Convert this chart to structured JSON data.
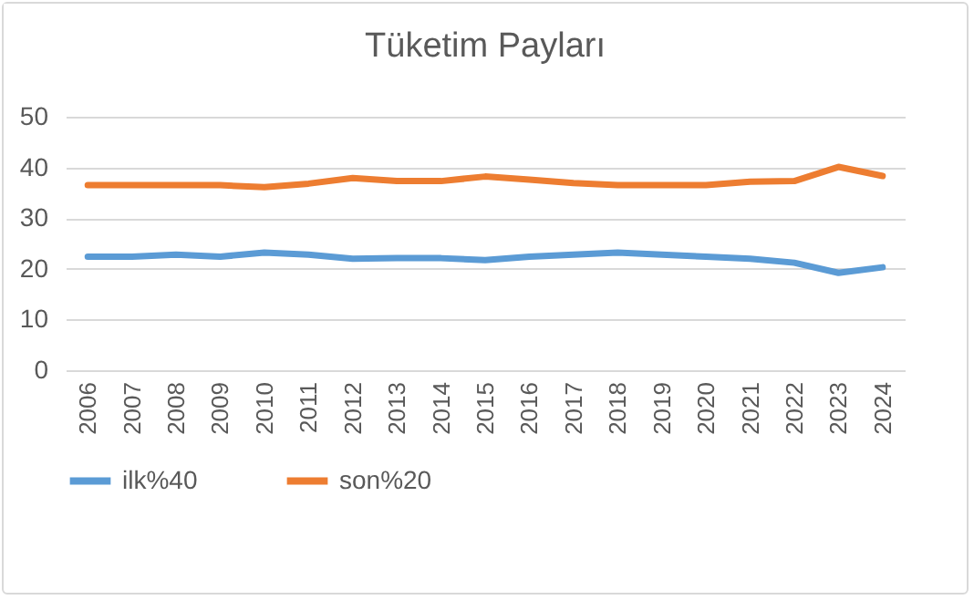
{
  "chart_data": {
    "type": "line",
    "title": "Tüketim Payları",
    "categories": [
      "2006",
      "2007",
      "2008",
      "2009",
      "2010",
      "2011",
      "2012",
      "2013",
      "2014",
      "2015",
      "2016",
      "2017",
      "2018",
      "2019",
      "2020",
      "2021",
      "2022",
      "2023",
      "2024"
    ],
    "series": [
      {
        "name": "ilk%40",
        "color": "#5b9bd5",
        "values": [
          22.4,
          22.4,
          22.8,
          22.4,
          23.2,
          22.8,
          22.0,
          22.1,
          22.1,
          21.7,
          22.4,
          22.8,
          23.2,
          22.8,
          22.4,
          22.0,
          21.2,
          19.2,
          20.3
        ]
      },
      {
        "name": "son%20",
        "color": "#ed7d31",
        "values": [
          36.5,
          36.5,
          36.5,
          36.5,
          36.1,
          36.8,
          37.9,
          37.3,
          37.3,
          38.2,
          37.6,
          36.9,
          36.5,
          36.5,
          36.5,
          37.2,
          37.3,
          40.1,
          38.3
        ]
      }
    ],
    "ylim": [
      0,
      50
    ],
    "yticks": [
      0,
      10,
      20,
      30,
      40,
      50
    ],
    "grid": "y",
    "legend": "bottom",
    "line_style": "solid",
    "marker": "none"
  }
}
